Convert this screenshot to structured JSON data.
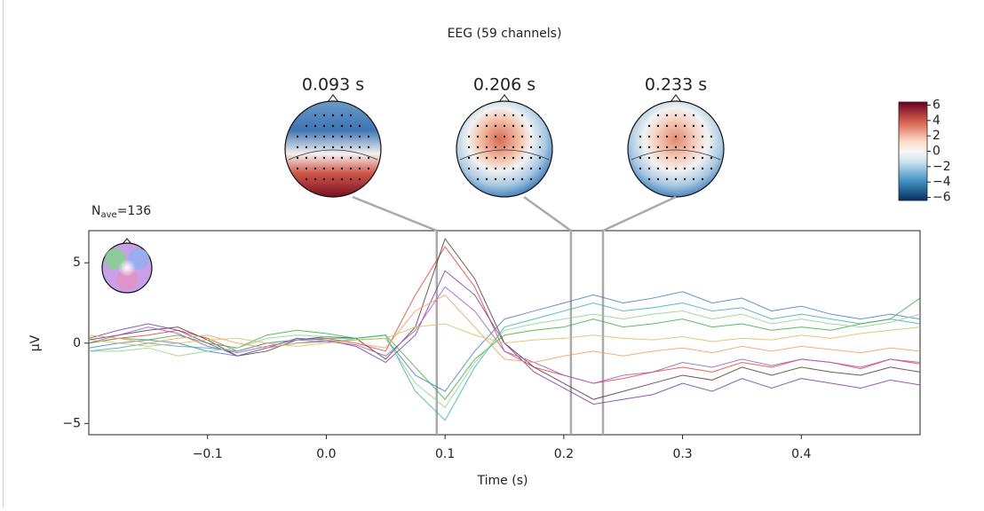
{
  "chart_data": {
    "type": "line",
    "title": "EEG (59 channels)",
    "nave": {
      "symbol": "N",
      "subscript": "ave",
      "text": "=136"
    },
    "xlabel": "Time (s)",
    "ylabel": "µV",
    "xlim": [
      -0.2,
      0.5
    ],
    "ylim": [
      -5.7,
      7.0
    ],
    "xticks": [
      {
        "value": -0.1,
        "label": "−0.1"
      },
      {
        "value": 0,
        "label": "0.0"
      },
      0.1,
      0.2,
      0.3,
      0.4
    ],
    "yticks": [
      {
        "value": -5,
        "label": "−5"
      },
      0,
      5
    ],
    "x": [
      -0.2,
      -0.175,
      -0.15,
      -0.125,
      -0.1,
      -0.075,
      -0.05,
      -0.025,
      0,
      0.025,
      0.05,
      0.075,
      0.1,
      0.125,
      0.15,
      0.175,
      0.2,
      0.225,
      0.25,
      0.275,
      0.3,
      0.325,
      0.35,
      0.375,
      0.4,
      0.425,
      0.45,
      0.475,
      0.5
    ],
    "series": [
      {
        "color": "#e0463a",
        "values": [
          0,
          0.3,
          0.5,
          0.8,
          0.3,
          -0.5,
          0,
          0.2,
          0.3,
          0,
          -0.5,
          3.0,
          6.0,
          3.5,
          -0.5,
          -1.5,
          -2.0,
          -2.5,
          -2.2,
          -1.8,
          -1.5,
          -1.8,
          -1.2,
          -1.5,
          -1.0,
          -1.2,
          -1.5,
          -1.0,
          -1.3
        ]
      },
      {
        "color": "#5b3a3a",
        "values": [
          0.2,
          0.5,
          0.8,
          1.0,
          0.2,
          -0.8,
          -0.5,
          0.2,
          0.4,
          0.3,
          -1.0,
          1.0,
          6.5,
          4.0,
          0.0,
          -1.5,
          -2.5,
          -3.5,
          -3.0,
          -2.5,
          -2.0,
          -2.3,
          -1.5,
          -2.0,
          -1.5,
          -1.8,
          -2.0,
          -1.5,
          -1.8
        ]
      },
      {
        "color": "#7b3f9e",
        "values": [
          0.3,
          0.8,
          1.2,
          0.8,
          0.0,
          -0.8,
          -0.3,
          0.3,
          0.2,
          -0.2,
          -1.2,
          0.5,
          4.5,
          3.0,
          0.0,
          -1.8,
          -2.8,
          -3.8,
          -3.5,
          -3.2,
          -2.5,
          -3.0,
          -2.2,
          -2.8,
          -2.2,
          -2.5,
          -2.8,
          -2.3,
          -2.6
        ]
      },
      {
        "color": "#a05cc8",
        "values": [
          0.0,
          0.5,
          1.0,
          0.6,
          -0.2,
          -0.6,
          -0.2,
          0.2,
          0.1,
          -0.1,
          -0.8,
          0.8,
          3.5,
          2.0,
          -0.5,
          -1.2,
          -2.0,
          -2.5,
          -2.0,
          -1.8,
          -1.2,
          -1.5,
          -1.0,
          -1.4,
          -1.0,
          -1.2,
          -1.6,
          -1.0,
          -1.2
        ]
      },
      {
        "color": "#4a7fc0",
        "values": [
          -0.3,
          0.0,
          0.2,
          0.0,
          -0.5,
          -0.8,
          -0.3,
          0.0,
          0.1,
          0.2,
          0.3,
          -2.0,
          -3.0,
          -0.5,
          1.5,
          2.0,
          2.5,
          3.0,
          2.5,
          2.8,
          3.2,
          2.5,
          2.8,
          2.0,
          2.3,
          1.8,
          1.5,
          1.8,
          1.5
        ]
      },
      {
        "color": "#40b0b0",
        "values": [
          -0.5,
          -0.3,
          0.0,
          -0.2,
          -0.3,
          -0.5,
          0.0,
          0.2,
          0.3,
          0.3,
          0.5,
          -3.0,
          -4.8,
          -1.5,
          1.0,
          1.5,
          2.0,
          2.5,
          2.0,
          2.2,
          2.5,
          2.0,
          2.2,
          1.5,
          1.8,
          1.5,
          1.2,
          1.5,
          1.2
        ]
      },
      {
        "color": "#40b040",
        "values": [
          0.0,
          0.3,
          0.2,
          0.5,
          0.0,
          -0.3,
          0.5,
          0.8,
          0.6,
          0.3,
          0.5,
          -1.5,
          -3.5,
          -1.0,
          0.5,
          0.8,
          1.0,
          1.5,
          1.0,
          1.2,
          1.5,
          1.0,
          1.2,
          0.8,
          1.0,
          0.8,
          1.2,
          1.5,
          2.8
        ]
      },
      {
        "color": "#8fd48f",
        "values": [
          -0.5,
          -0.5,
          -0.3,
          -0.8,
          -0.5,
          -0.3,
          0.3,
          0.5,
          0.4,
          0.2,
          0.3,
          -2.5,
          -4.0,
          -1.2,
          0.8,
          1.2,
          1.5,
          1.8,
          1.5,
          1.8,
          2.0,
          1.5,
          1.8,
          1.2,
          1.5,
          1.2,
          1.0,
          1.3,
          1.8
        ]
      },
      {
        "color": "#f0a060",
        "values": [
          0.5,
          0.3,
          0.0,
          0.3,
          0.5,
          0.0,
          -0.3,
          0.0,
          0.2,
          0.0,
          -0.3,
          2.0,
          3.0,
          1.0,
          -1.0,
          -1.2,
          -0.8,
          -0.5,
          -0.8,
          -0.5,
          -0.3,
          -0.6,
          -0.2,
          -0.5,
          -0.2,
          -0.4,
          -0.6,
          -0.3,
          -0.5
        ]
      },
      {
        "color": "#d8c060",
        "values": [
          0.2,
          0.0,
          -0.2,
          0.0,
          0.2,
          0.3,
          0.0,
          -0.2,
          0.0,
          0.2,
          0.3,
          1.0,
          1.2,
          0.5,
          0.0,
          0.2,
          0.3,
          0.5,
          0.3,
          0.2,
          0.4,
          0.1,
          0.3,
          0.2,
          0.5,
          0.3,
          0.6,
          0.8,
          1.0
        ]
      }
    ],
    "topomap_times": [
      {
        "value": 0.093,
        "label": "0.093 s"
      },
      {
        "value": 0.206,
        "label": "0.206 s"
      },
      {
        "value": 0.233,
        "label": "0.233 s"
      }
    ],
    "colorbar": {
      "lim": [
        -6.4,
        6.4
      ],
      "ticks": [
        6,
        4,
        2,
        0,
        {
          "value": -2,
          "label": "−2"
        },
        {
          "value": -4,
          "label": "−4"
        },
        {
          "value": -6,
          "label": "−6"
        }
      ]
    }
  }
}
